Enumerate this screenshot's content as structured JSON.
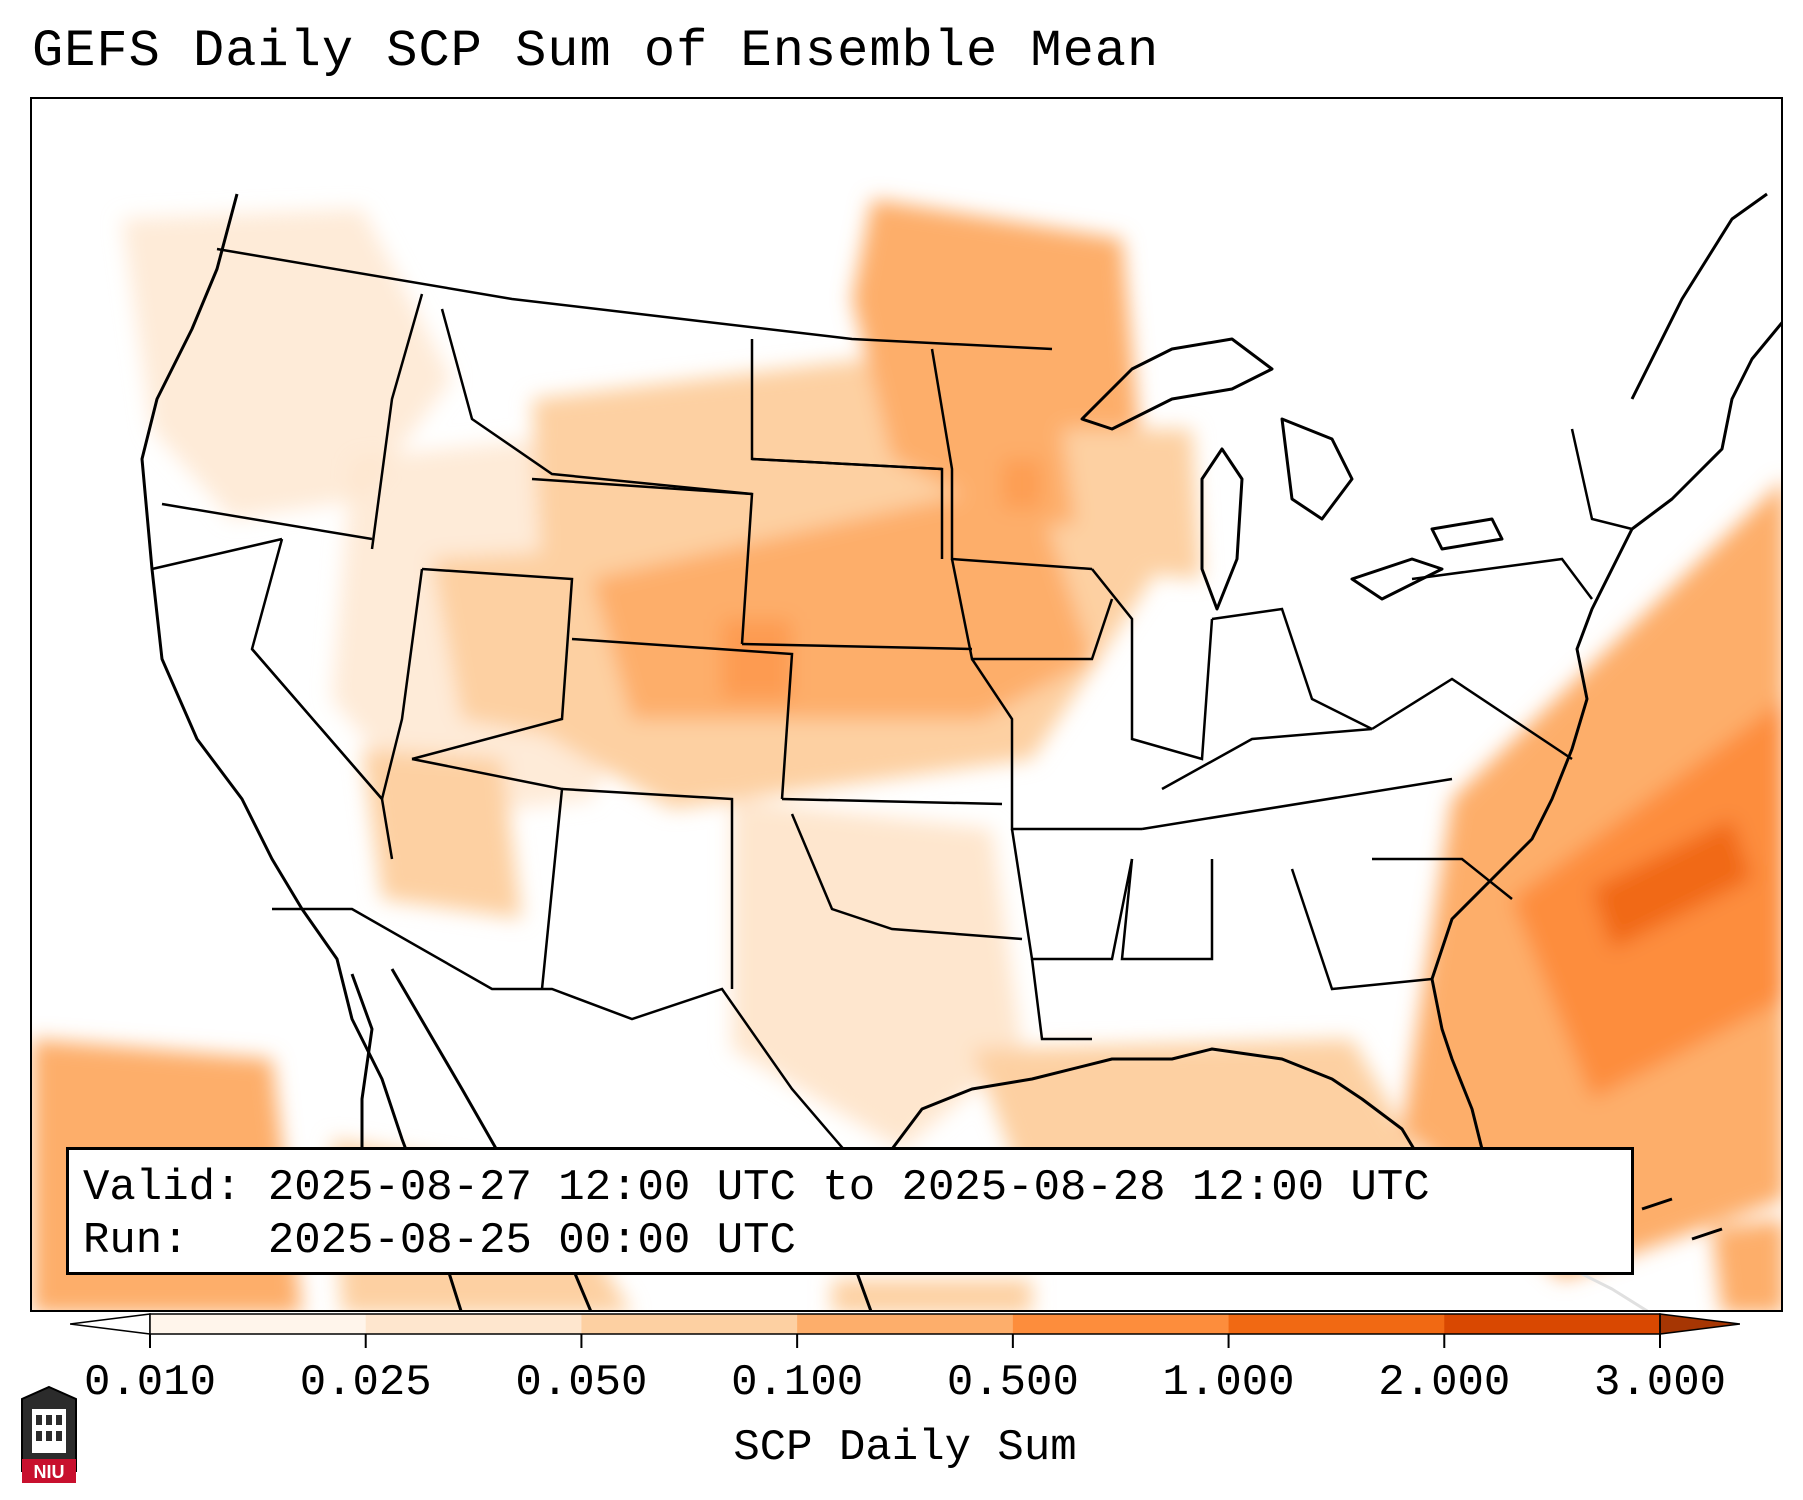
{
  "title": "GEFS Daily SCP Sum of Ensemble Mean",
  "info": {
    "valid_label": "Valid:",
    "valid_value": "2025-08-27 12:00 UTC to 2025-08-28 12:00 UTC",
    "run_label": "Run:",
    "run_value": "2025-08-25 00:00 UTC"
  },
  "colorbar": {
    "label": "SCP Daily Sum",
    "ticks": [
      "0.010",
      "0.025",
      "0.050",
      "0.100",
      "0.500",
      "1.000",
      "2.000",
      "3.000"
    ],
    "colors": [
      "#fff5eb",
      "#fee6ce",
      "#fdd0a2",
      "#fdae6b",
      "#fd8d3c",
      "#f16913",
      "#d94801",
      "#a63603"
    ]
  },
  "logo": {
    "text": "NIU",
    "color": "#c8102e"
  }
}
